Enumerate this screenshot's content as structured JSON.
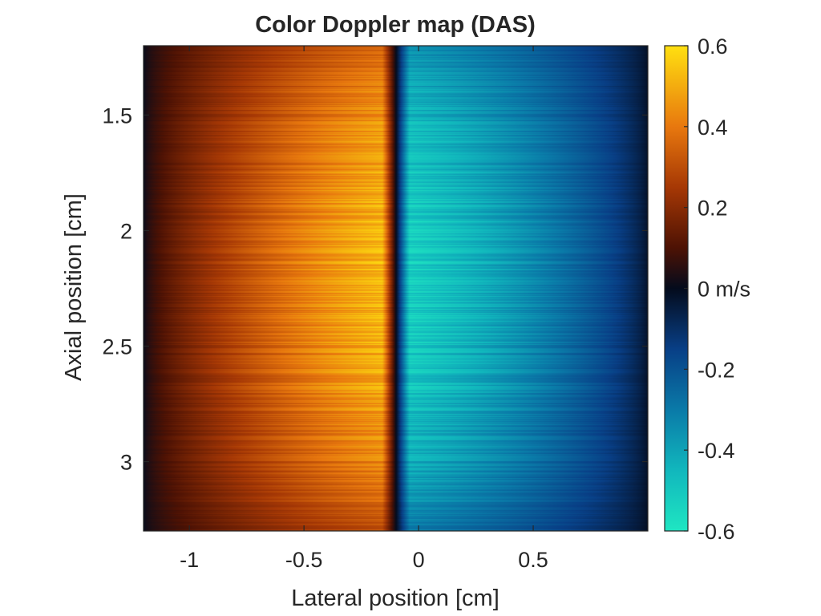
{
  "chart_data": {
    "type": "heatmap",
    "title": "Color Doppler map (DAS)",
    "xlabel": "Lateral position [cm]",
    "ylabel": "Axial position [cm]",
    "xlim": [
      -1.2,
      1.0
    ],
    "ylim": [
      1.2,
      3.3
    ],
    "y_reversed": true,
    "x_ticks": [
      -1,
      -0.5,
      0,
      0.5
    ],
    "x_tick_labels": [
      "-1",
      "-0.5",
      "0",
      "0.5"
    ],
    "y_ticks": [
      1.5,
      2,
      2.5,
      3
    ],
    "y_tick_labels": [
      "1.5",
      "2",
      "2.5",
      "3"
    ],
    "colorbar": {
      "limits": [
        -0.6,
        0.6
      ],
      "unit_label": "0 m/s",
      "ticks": [
        0.6,
        0.4,
        0.2,
        0,
        -0.2,
        -0.4,
        -0.6
      ],
      "tick_labels": [
        "0.6",
        "0.4",
        "0.2",
        "0 m/s",
        "-0.2",
        "-0.4",
        "-0.6"
      ],
      "colormap_stops": [
        {
          "value": -0.6,
          "color": "#1fe6c2"
        },
        {
          "value": -0.45,
          "color": "#11b7bd"
        },
        {
          "value": -0.3,
          "color": "#0a7aa8"
        },
        {
          "value": -0.15,
          "color": "#083f86"
        },
        {
          "value": 0,
          "color": "#040b1c"
        },
        {
          "value": 0.1,
          "color": "#4d1204"
        },
        {
          "value": 0.25,
          "color": "#a63805"
        },
        {
          "value": 0.4,
          "color": "#e8780e"
        },
        {
          "value": 0.6,
          "color": "#ffe010"
        }
      ]
    },
    "field": {
      "description": "Parabolic flow profile across a vessel centred at x = -0.1 cm; positive velocity left of centre, negative right of centre",
      "center_x": -0.1,
      "half_width": 1.1,
      "peak_positive": 0.6,
      "peak_negative": -0.6,
      "vessel_center_y": 2.2
    }
  }
}
